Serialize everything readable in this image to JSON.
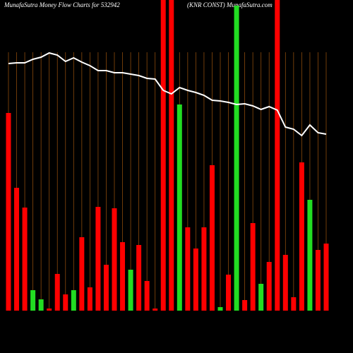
{
  "chart_data": {
    "type": "bar",
    "title": "MunafaSutra  Money Flow  Charts for 532942",
    "subtitle": "(KNR CONST) MunafaSutra.com",
    "values": [
      280,
      174,
      146,
      29,
      16,
      3,
      52,
      23,
      29,
      104,
      33,
      147,
      65,
      145,
      97,
      58,
      93,
      42,
      3,
      440,
      440,
      292,
      118,
      88,
      118,
      206,
      5,
      51,
      432,
      15,
      124,
      38,
      69,
      440,
      79,
      19,
      210,
      157,
      86,
      95
    ],
    "colors": [
      "#ff0000",
      "#ff0000",
      "#ff0000",
      "#22dd22",
      "#22dd22",
      "#ff0000",
      "#ff0000",
      "#ff0000",
      "#22dd22",
      "#ff0000",
      "#ff0000",
      "#ff0000",
      "#ff0000",
      "#ff0000",
      "#ff0000",
      "#22dd22",
      "#ff0000",
      "#ff0000",
      "#ff0000",
      "#ff0000",
      "#ff0000",
      "#22dd22",
      "#ff0000",
      "#ff0000",
      "#ff0000",
      "#ff0000",
      "#22dd22",
      "#ff0000",
      "#22dd22",
      "#ff0000",
      "#ff0000",
      "#22dd22",
      "#ff0000",
      "#ff0000",
      "#ff0000",
      "#ff0000",
      "#ff0000",
      "#22dd22",
      "#ff0000",
      "#ff0000"
    ],
    "line": {
      "color": "#ffffff",
      "values": [
        350,
        351,
        351,
        356,
        359,
        365,
        362,
        353,
        358,
        352,
        347,
        340,
        340,
        337,
        337,
        335,
        333,
        329,
        328,
        312,
        307,
        316,
        312,
        309,
        305,
        298,
        297,
        295,
        292,
        293,
        290,
        285,
        289,
        284,
        260,
        257,
        248,
        263,
        252,
        250
      ]
    },
    "ylim": [
      0,
      440
    ]
  }
}
